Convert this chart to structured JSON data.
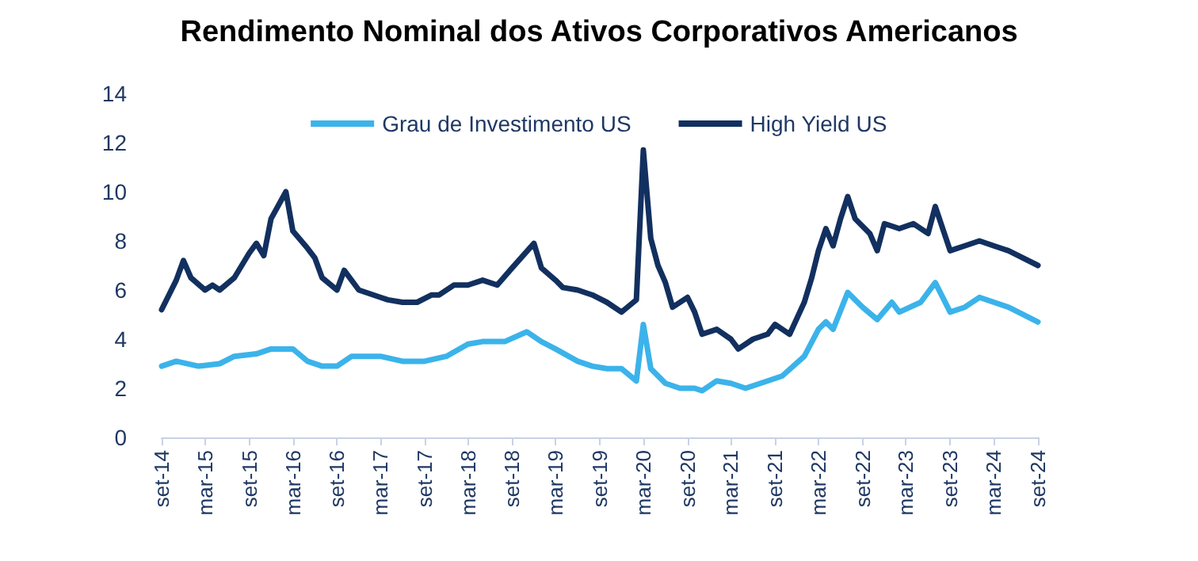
{
  "chart_data": {
    "type": "line",
    "title": "Rendimento Nominal dos Ativos Corporativos Americanos",
    "xlim": [
      "2014-09",
      "2024-09"
    ],
    "xticks": [
      {
        "value": "2014-09",
        "label": "set-14"
      },
      {
        "value": "2015-03",
        "label": "mar-15"
      },
      {
        "value": "2015-09",
        "label": "set-15"
      },
      {
        "value": "2016-03",
        "label": "mar-16"
      },
      {
        "value": "2016-09",
        "label": "set-16"
      },
      {
        "value": "2017-03",
        "label": "mar-17"
      },
      {
        "value": "2017-09",
        "label": "set-17"
      },
      {
        "value": "2018-03",
        "label": "mar-18"
      },
      {
        "value": "2018-09",
        "label": "set-18"
      },
      {
        "value": "2019-03",
        "label": "mar-19"
      },
      {
        "value": "2019-09",
        "label": "set-19"
      },
      {
        "value": "2020-03",
        "label": "mar-20"
      },
      {
        "value": "2020-09",
        "label": "set-20"
      },
      {
        "value": "2021-03",
        "label": "mar-21"
      },
      {
        "value": "2021-09",
        "label": "set-21"
      },
      {
        "value": "2022-03",
        "label": "mar-22"
      },
      {
        "value": "2022-09",
        "label": "set-22"
      },
      {
        "value": "2023-03",
        "label": "mar-23"
      },
      {
        "value": "2023-09",
        "label": "set-23"
      },
      {
        "value": "2024-03",
        "label": "mar-24"
      },
      {
        "value": "2024-09",
        "label": "set-24"
      }
    ],
    "ylim": [
      0,
      14
    ],
    "yticks": [
      0,
      2,
      4,
      6,
      8,
      10,
      12,
      14
    ],
    "grid": false,
    "legend": "top",
    "marker": "none",
    "line_style": "solid",
    "series": [
      {
        "name": "Grau de Investimento US",
        "color": "#3bb3ea",
        "x": [
          "2014-09",
          "2014-11",
          "2015-02",
          "2015-05",
          "2015-07",
          "2015-10",
          "2015-12",
          "2016-03",
          "2016-05",
          "2016-07",
          "2016-09",
          "2016-11",
          "2017-03",
          "2017-06",
          "2017-09",
          "2017-12",
          "2018-03",
          "2018-05",
          "2018-08",
          "2018-11",
          "2019-01",
          "2019-03",
          "2019-06",
          "2019-08",
          "2019-10",
          "2019-12",
          "2020-02",
          "2020-03",
          "2020-04",
          "2020-06",
          "2020-08",
          "2020-10",
          "2020-11",
          "2021-01",
          "2021-03",
          "2021-05",
          "2021-08",
          "2021-10",
          "2022-01",
          "2022-03",
          "2022-04",
          "2022-05",
          "2022-07",
          "2022-09",
          "2022-11",
          "2023-01",
          "2023-02",
          "2023-05",
          "2023-07",
          "2023-09",
          "2023-11",
          "2024-01",
          "2024-05",
          "2024-09"
        ],
        "values": [
          2.9,
          3.1,
          2.9,
          3.0,
          3.3,
          3.4,
          3.6,
          3.6,
          3.1,
          2.9,
          2.9,
          3.3,
          3.3,
          3.1,
          3.1,
          3.3,
          3.8,
          3.9,
          3.9,
          4.3,
          3.9,
          3.6,
          3.1,
          2.9,
          2.8,
          2.8,
          2.3,
          4.6,
          2.8,
          2.2,
          2.0,
          2.0,
          1.9,
          2.3,
          2.2,
          2.0,
          2.3,
          2.5,
          3.3,
          4.4,
          4.7,
          4.4,
          5.9,
          5.3,
          4.8,
          5.5,
          5.1,
          5.5,
          6.3,
          5.1,
          5.3,
          5.7,
          5.3,
          4.7
        ]
      },
      {
        "name": "High Yield US",
        "color": "#12305f",
        "x": [
          "2014-09",
          "2014-11",
          "2014-12",
          "2015-01",
          "2015-03",
          "2015-04",
          "2015-05",
          "2015-07",
          "2015-09",
          "2015-10",
          "2015-11",
          "2015-12",
          "2016-02",
          "2016-03",
          "2016-05",
          "2016-06",
          "2016-07",
          "2016-09",
          "2016-10",
          "2016-12",
          "2017-03",
          "2017-04",
          "2017-06",
          "2017-08",
          "2017-10",
          "2017-11",
          "2018-01",
          "2018-03",
          "2018-05",
          "2018-07",
          "2018-09",
          "2018-12",
          "2019-01",
          "2019-03",
          "2019-04",
          "2019-06",
          "2019-08",
          "2019-10",
          "2019-12",
          "2020-02",
          "2020-03",
          "2020-04",
          "2020-05",
          "2020-06",
          "2020-07",
          "2020-09",
          "2020-10",
          "2020-11",
          "2021-01",
          "2021-03",
          "2021-04",
          "2021-06",
          "2021-08",
          "2021-09",
          "2021-11",
          "2022-01",
          "2022-02",
          "2022-03",
          "2022-04",
          "2022-05",
          "2022-06",
          "2022-07",
          "2022-08",
          "2022-10",
          "2022-11",
          "2022-12",
          "2023-02",
          "2023-04",
          "2023-06",
          "2023-07",
          "2023-09",
          "2023-11",
          "2024-01",
          "2024-03",
          "2024-05",
          "2024-09"
        ],
        "values": [
          5.2,
          6.4,
          7.2,
          6.5,
          6.0,
          6.2,
          6.0,
          6.5,
          7.5,
          7.9,
          7.4,
          8.9,
          10.0,
          8.4,
          7.7,
          7.3,
          6.5,
          6.0,
          6.8,
          6.0,
          5.7,
          5.6,
          5.5,
          5.5,
          5.8,
          5.8,
          6.2,
          6.2,
          6.4,
          6.2,
          6.9,
          7.9,
          6.9,
          6.4,
          6.1,
          6.0,
          5.8,
          5.5,
          5.1,
          5.6,
          11.7,
          8.1,
          7.0,
          6.3,
          5.3,
          5.7,
          5.1,
          4.2,
          4.4,
          4.0,
          3.6,
          4.0,
          4.2,
          4.6,
          4.2,
          5.5,
          6.5,
          7.6,
          8.5,
          7.8,
          8.9,
          9.8,
          8.9,
          8.3,
          7.6,
          8.7,
          8.5,
          8.7,
          8.3,
          9.4,
          7.6,
          7.8,
          8.0,
          7.8,
          7.6,
          7.0
        ]
      }
    ]
  }
}
